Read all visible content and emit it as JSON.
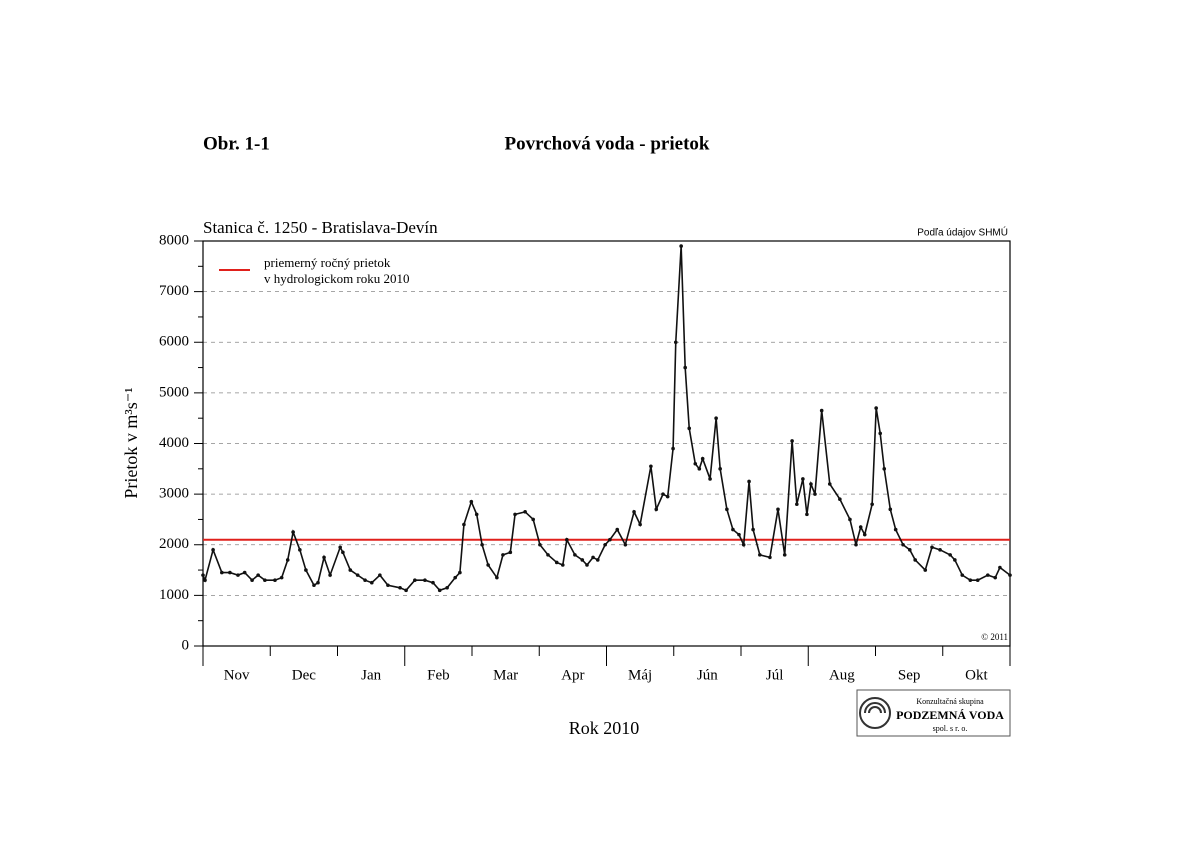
{
  "header": {
    "figure": "Obr. 1-1",
    "title": "Povrchová voda - prietok"
  },
  "chart_data": {
    "type": "line",
    "title": "Stanica č. 1250 - Bratislava-Devín",
    "source": "Podľa údajov SHMÚ",
    "copyright": "© 2011",
    "ylabel": "Prietok v m³s⁻¹",
    "xlabel": "Rok 2010",
    "categories": [
      "Nov",
      "Dec",
      "Jan",
      "Feb",
      "Mar",
      "Apr",
      "Máj",
      "Jún",
      "Júl",
      "Aug",
      "Sep",
      "Okt"
    ],
    "xlim": [
      0,
      12
    ],
    "ylim": [
      0,
      8000
    ],
    "yticks": [
      0,
      1000,
      2000,
      3000,
      4000,
      5000,
      6000,
      7000,
      8000
    ],
    "grid": true,
    "reference_line": {
      "label": [
        "priemerný ročný prietok",
        "v hydrologickom roku 2010"
      ],
      "value": 2100,
      "color": "#e0201b"
    },
    "series": [
      {
        "color": "#111111",
        "x": [
          0,
          0.03,
          0.15,
          0.28,
          0.4,
          0.52,
          0.62,
          0.73,
          0.82,
          0.92,
          1.07,
          1.17,
          1.26,
          1.34,
          1.44,
          1.53,
          1.65,
          1.71,
          1.8,
          1.89,
          2.04,
          2.08,
          2.19,
          2.3,
          2.41,
          2.51,
          2.63,
          2.75,
          2.93,
          3.02,
          3.15,
          3.3,
          3.42,
          3.52,
          3.63,
          3.75,
          3.82,
          3.88,
          3.99,
          4.07,
          4.15,
          4.24,
          4.37,
          4.46,
          4.57,
          4.64,
          4.79,
          4.91,
          5.01,
          5.13,
          5.26,
          5.35,
          5.41,
          5.53,
          5.64,
          5.71,
          5.8,
          5.87,
          5.98,
          6.05,
          6.16,
          6.28,
          6.41,
          6.5,
          6.66,
          6.74,
          6.84,
          6.91,
          6.99,
          7.03,
          7.11,
          7.17,
          7.23,
          7.32,
          7.38,
          7.43,
          7.54,
          7.63,
          7.69,
          7.79,
          7.88,
          7.97,
          8.04,
          8.12,
          8.18,
          8.28,
          8.43,
          8.55,
          8.65,
          8.76,
          8.83,
          8.92,
          8.98,
          9.04,
          9.1,
          9.2,
          9.32,
          9.47,
          9.62,
          9.71,
          9.78,
          9.84,
          9.95,
          10.01,
          10.07,
          10.13,
          10.22,
          10.3,
          10.41,
          10.51,
          10.59,
          10.74,
          10.84,
          10.96,
          11.11,
          11.18,
          11.29,
          11.41,
          11.52,
          11.67,
          11.78,
          11.85,
          12
        ],
        "values": [
          1400,
          1300,
          1900,
          1450,
          1450,
          1400,
          1450,
          1300,
          1400,
          1300,
          1300,
          1350,
          1700,
          2250,
          1900,
          1500,
          1200,
          1250,
          1750,
          1400,
          1950,
          1850,
          1500,
          1400,
          1300,
          1250,
          1400,
          1200,
          1150,
          1100,
          1300,
          1300,
          1250,
          1100,
          1150,
          1350,
          1450,
          2400,
          2850,
          2600,
          2000,
          1600,
          1350,
          1800,
          1850,
          2600,
          2650,
          2500,
          2000,
          1800,
          1650,
          1600,
          2100,
          1800,
          1700,
          1600,
          1750,
          1700,
          2000,
          2100,
          2300,
          2000,
          2650,
          2400,
          3550,
          2700,
          3000,
          2950,
          3900,
          6000,
          7900,
          5500,
          4300,
          3600,
          3500,
          3700,
          3300,
          4500,
          3500,
          2700,
          2300,
          2200,
          2000,
          3250,
          2300,
          1800,
          1750,
          2700,
          1800,
          4050,
          2800,
          3300,
          2600,
          3200,
          3000,
          4650,
          3200,
          2900,
          2500,
          2000,
          2350,
          2200,
          2800,
          4700,
          4200,
          3500,
          2700,
          2300,
          2000,
          1900,
          1700,
          1500,
          1950,
          1900,
          1800,
          1700,
          1400,
          1300,
          1300,
          1400,
          1350,
          1550,
          1400
        ]
      }
    ]
  },
  "logo": {
    "top": "Konzultačná skupina",
    "name": "PODZEMNÁ VODA",
    "bottom": "spol. s r. o."
  }
}
